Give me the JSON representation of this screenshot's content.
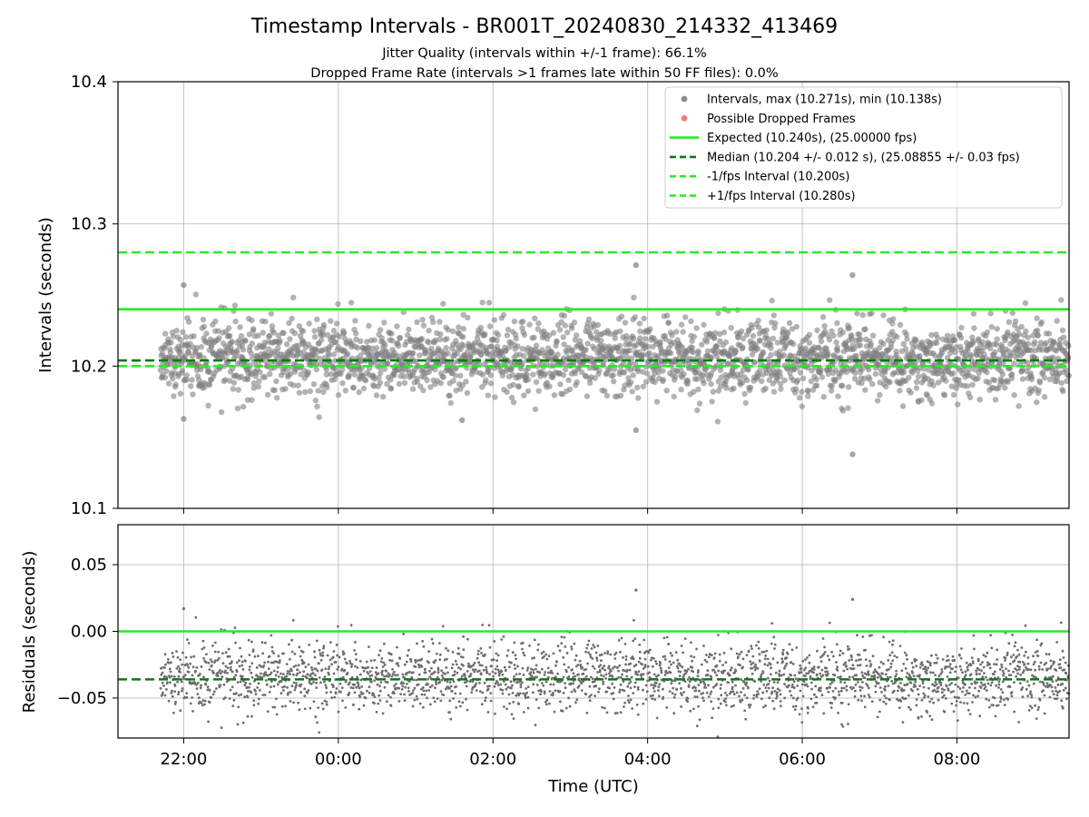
{
  "chart_data": [
    {
      "type": "scatter",
      "panel": "intervals",
      "title": "Timestamp Intervals - BR001T_20240830_214332_413469",
      "subtitle_lines": [
        "Jitter Quality (intervals within +/-1 frame): 66.1%",
        "Dropped Frame Rate (intervals >1 frames late within 50 FF files): 0.0%"
      ],
      "ylabel": "Intervals (seconds)",
      "ylim": [
        10.1,
        10.4
      ],
      "yticks": [
        "10.1",
        "10.2",
        "10.3",
        "10.4"
      ],
      "xlim_hours": [
        -2.85,
        9.45
      ],
      "data_range_hours": [
        -2.3,
        9.45
      ],
      "grid": true,
      "legend_position": "top-right",
      "scatter_center": 10.206,
      "scatter_spread": 0.013,
      "outliers": [
        {
          "x": -2.0,
          "y": 10.257
        },
        {
          "x": 3.85,
          "y": 10.271
        },
        {
          "x": 6.65,
          "y": 10.264
        },
        {
          "x": 6.65,
          "y": 10.138
        },
        {
          "x": 3.85,
          "y": 10.155
        },
        {
          "x": -2.0,
          "y": 10.163
        },
        {
          "x": 1.6,
          "y": 10.162
        }
      ],
      "lines": [
        {
          "name": "Expected (10.240s), (25.00000 fps)",
          "y": 10.24,
          "style": "solid",
          "color": "#22ee22"
        },
        {
          "name": "Median (10.204 +/- 0.012 s), (25.08855 +/- 0.03 fps)",
          "y": 10.204,
          "style": "dashed",
          "color": "#117711"
        },
        {
          "name": "-1/fps Interval (10.200s)",
          "y": 10.2,
          "style": "dashed",
          "color": "#22ee22"
        },
        {
          "name": "+1/fps Interval (10.280s)",
          "y": 10.28,
          "style": "dashed",
          "color": "#22ee22"
        }
      ],
      "legend": [
        {
          "label": "Intervals, max (10.271s), min (10.138s)",
          "kind": "marker",
          "color": "#808080"
        },
        {
          "label": "Possible Dropped Frames",
          "kind": "marker",
          "color": "#f07070"
        },
        {
          "label": "Expected (10.240s), (25.00000 fps)",
          "kind": "solid",
          "color": "#22ee22"
        },
        {
          "label": "Median (10.204 +/- 0.012 s), (25.08855 +/- 0.03 fps)",
          "kind": "dashed",
          "color": "#117711"
        },
        {
          "label": "-1/fps Interval (10.200s)",
          "kind": "dashed",
          "color": "#22ee22"
        },
        {
          "label": "+1/fps Interval (10.280s)",
          "kind": "dashed",
          "color": "#22ee22"
        }
      ]
    },
    {
      "type": "scatter",
      "panel": "residuals",
      "xlabel": "Time (UTC)",
      "ylabel": "Residuals (seconds)",
      "ylim": [
        -0.08,
        0.08
      ],
      "yticks": [
        {
          "value": -0.05,
          "label": "−0.05"
        },
        {
          "value": 0.0,
          "label": "0.00"
        },
        {
          "value": 0.05,
          "label": "0.05"
        }
      ],
      "xticks": [
        {
          "hour": -2,
          "label": "22:00"
        },
        {
          "hour": 0,
          "label": "00:00"
        },
        {
          "hour": 2,
          "label": "02:00"
        },
        {
          "hour": 4,
          "label": "04:00"
        },
        {
          "hour": 6,
          "label": "06:00"
        },
        {
          "hour": 8,
          "label": "08:00"
        }
      ],
      "grid": true,
      "scatter_center": -0.034,
      "scatter_spread": 0.013,
      "outliers": [
        {
          "x": -2.0,
          "y": 0.017
        },
        {
          "x": 3.85,
          "y": 0.031
        },
        {
          "x": 6.65,
          "y": 0.024
        }
      ],
      "lines": [
        {
          "y": 0.0,
          "style": "solid",
          "color": "#22ee22"
        },
        {
          "y": -0.036,
          "style": "dashed",
          "color": "#117711"
        }
      ]
    }
  ]
}
